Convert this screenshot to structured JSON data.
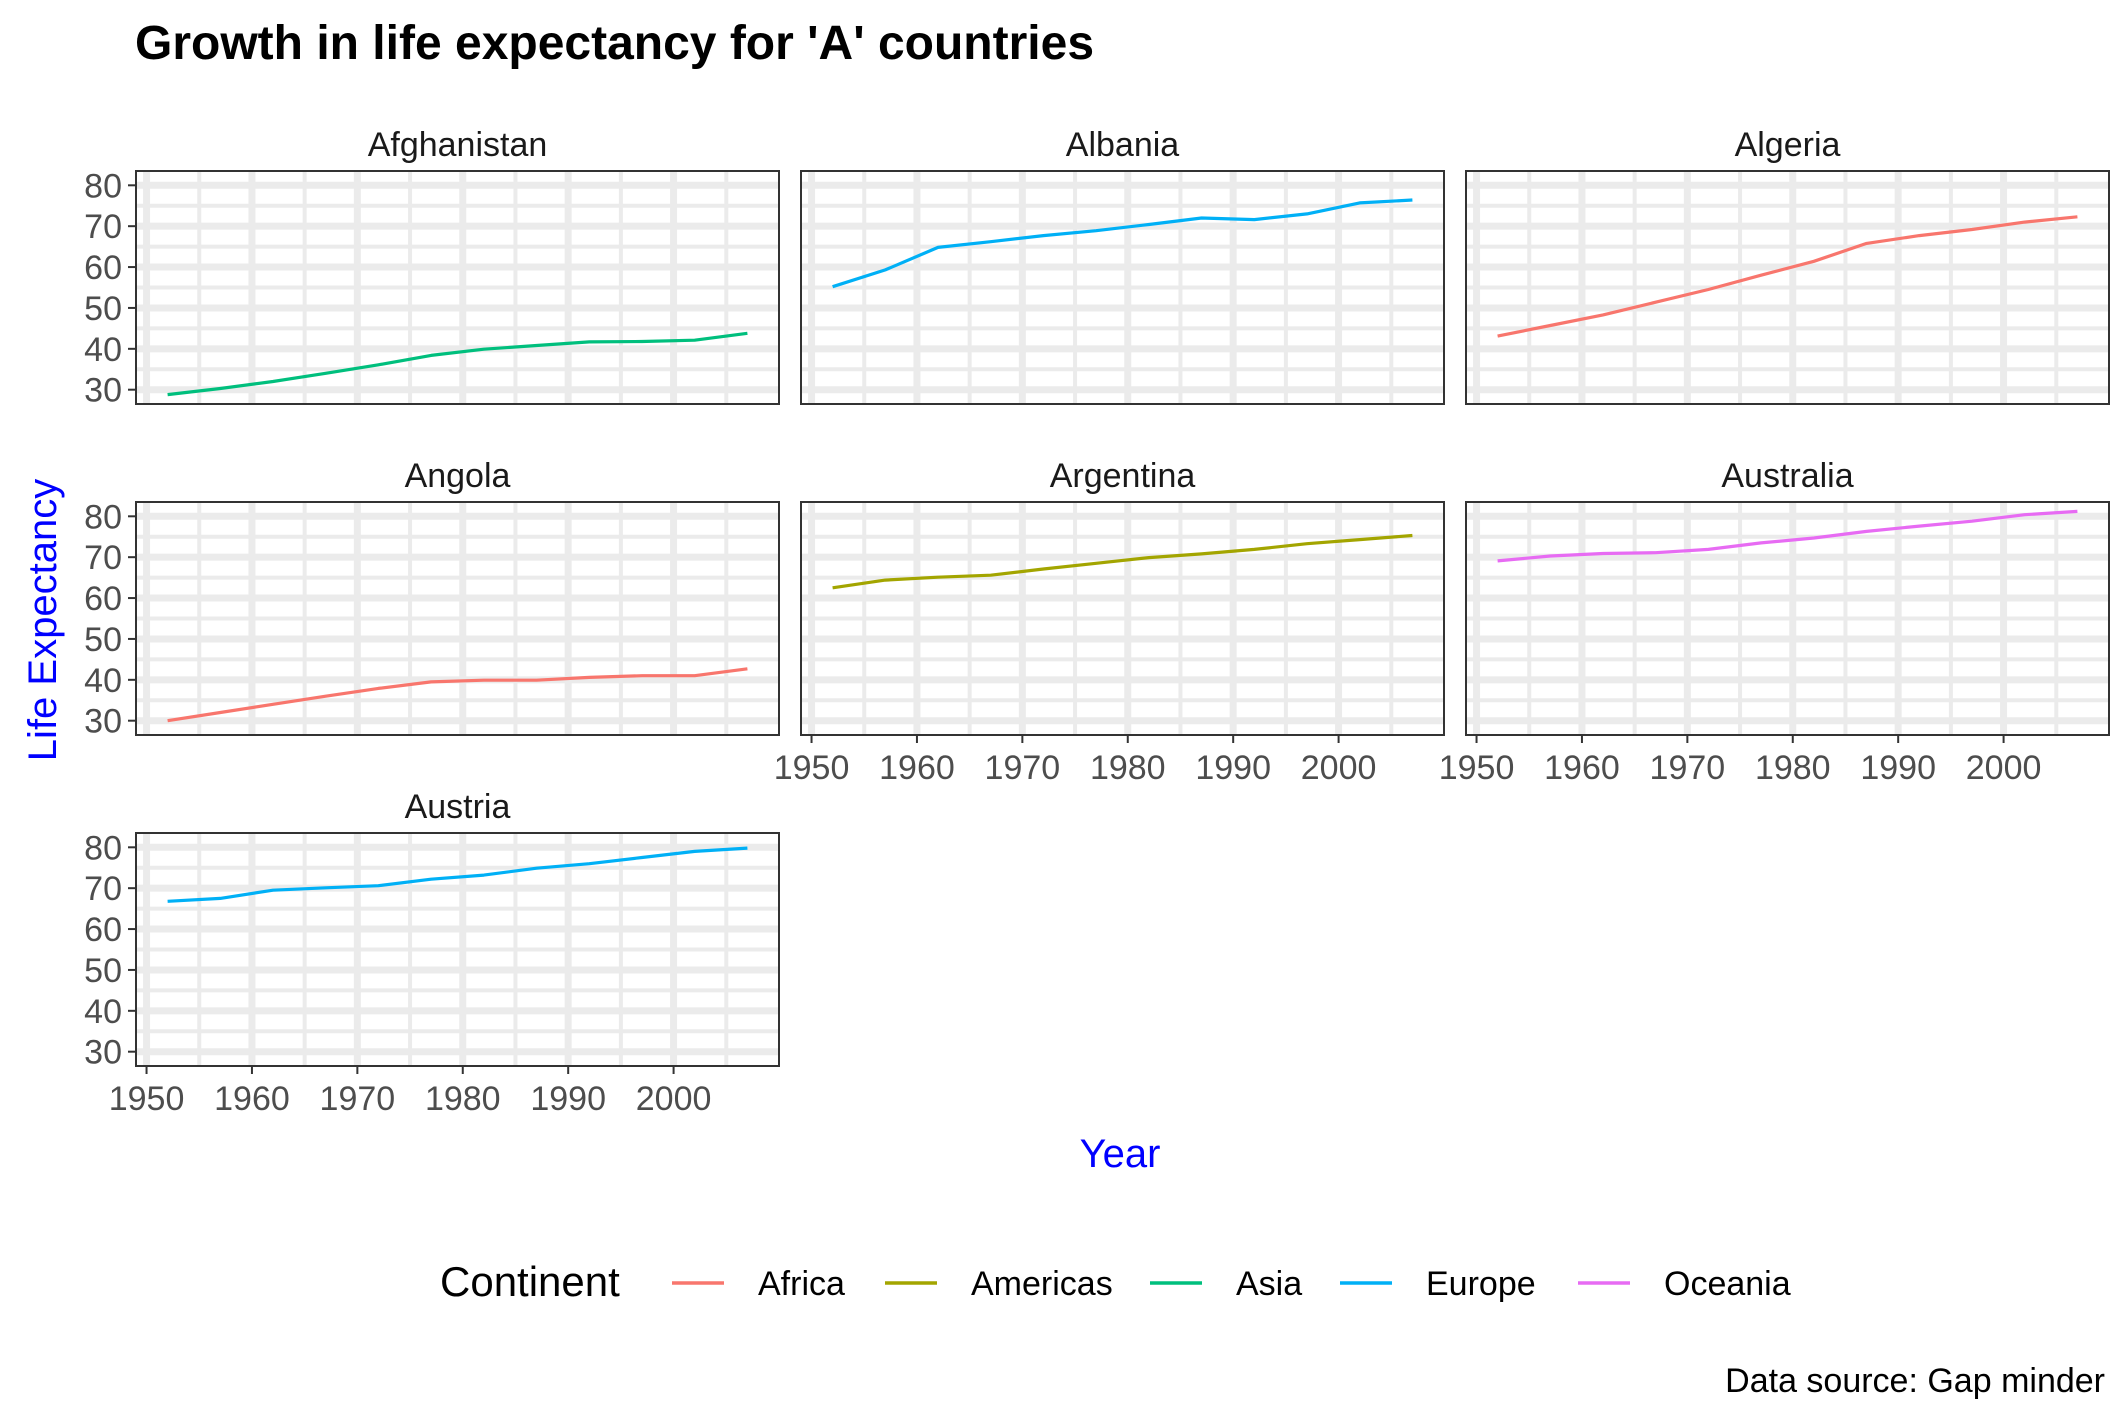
{
  "chart_data": {
    "type": "line",
    "title": "Growth in life expectancy for 'A' countries",
    "xlabel": "Year",
    "ylabel": "Life Expectancy",
    "axis_title_color": "#0000FF",
    "caption": "Data source: Gap minder",
    "xlim": [
      1949,
      2010
    ],
    "ylim": [
      26.5,
      83.5
    ],
    "x_ticks": [
      1950,
      1960,
      1970,
      1980,
      1990,
      2000
    ],
    "y_ticks": [
      30,
      40,
      50,
      60,
      70,
      80
    ],
    "grid": true,
    "facet_grid": {
      "columns": 3,
      "rows": 3
    },
    "x": [
      1952,
      1957,
      1962,
      1967,
      1972,
      1977,
      1982,
      1987,
      1992,
      1997,
      2002,
      2007
    ],
    "legend": {
      "title": "Continent",
      "position": "bottom",
      "entries": [
        {
          "label": "Africa",
          "color": "#F8766D"
        },
        {
          "label": "Americas",
          "color": "#A3A500"
        },
        {
          "label": "Asia",
          "color": "#00BF7D"
        },
        {
          "label": "Europe",
          "color": "#00B0F6"
        },
        {
          "label": "Oceania",
          "color": "#E76BF3"
        }
      ]
    },
    "series": [
      {
        "name": "Afghanistan",
        "continent": "Asia",
        "color": "#00BF7D",
        "values": [
          28.8,
          30.3,
          32.0,
          34.0,
          36.1,
          38.4,
          39.9,
          40.8,
          41.7,
          41.8,
          42.1,
          43.8
        ]
      },
      {
        "name": "Albania",
        "continent": "Europe",
        "color": "#00B0F6",
        "values": [
          55.2,
          59.3,
          64.8,
          66.2,
          67.7,
          68.9,
          70.4,
          72.0,
          71.6,
          73.0,
          75.7,
          76.4
        ]
      },
      {
        "name": "Algeria",
        "continent": "Africa",
        "color": "#F8766D",
        "values": [
          43.1,
          45.7,
          48.3,
          51.4,
          54.5,
          58.0,
          61.4,
          65.8,
          67.7,
          69.2,
          71.0,
          72.3
        ]
      },
      {
        "name": "Angola",
        "continent": "Africa",
        "color": "#F8766D",
        "values": [
          30.0,
          32.0,
          34.0,
          36.0,
          37.9,
          39.5,
          39.9,
          39.9,
          40.6,
          41.0,
          41.0,
          42.7
        ]
      },
      {
        "name": "Argentina",
        "continent": "Americas",
        "color": "#A3A500",
        "values": [
          62.5,
          64.4,
          65.1,
          65.6,
          67.1,
          68.5,
          69.9,
          70.8,
          71.9,
          73.3,
          74.3,
          75.3
        ]
      },
      {
        "name": "Australia",
        "continent": "Oceania",
        "color": "#E76BF3",
        "values": [
          69.1,
          70.3,
          70.9,
          71.1,
          71.9,
          73.5,
          74.7,
          76.3,
          77.6,
          78.8,
          80.4,
          81.2
        ]
      },
      {
        "name": "Austria",
        "continent": "Europe",
        "color": "#00B0F6",
        "values": [
          66.8,
          67.5,
          69.5,
          70.1,
          70.6,
          72.2,
          73.2,
          74.9,
          76.0,
          77.5,
          79.0,
          79.8
        ]
      }
    ]
  }
}
